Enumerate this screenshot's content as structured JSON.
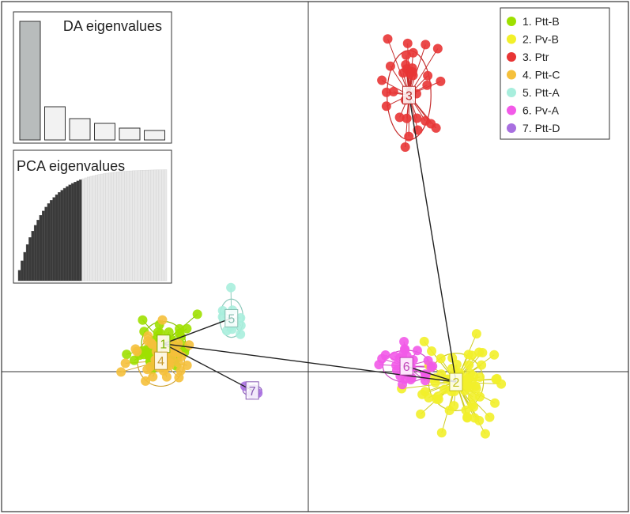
{
  "chart_data": {
    "type": "scatter",
    "title": "",
    "xlabel": "",
    "ylabel": "",
    "xlim": [
      -6,
      6
    ],
    "ylim": [
      -4,
      8
    ],
    "grid": false,
    "legend_position": "top-right",
    "groups": [
      {
        "id": "1",
        "name": "1. Ptt-B",
        "color": "#9ee000",
        "center": [
          -2.9,
          -0.05
        ],
        "spread": [
          0.28,
          0.35
        ],
        "count": 45,
        "seed": 11
      },
      {
        "id": "2",
        "name": "2. Pv-B",
        "color": "#f2f02a",
        "center": [
          2.7,
          -0.95
        ],
        "spread": [
          0.35,
          0.45
        ],
        "count": 70,
        "seed": 22
      },
      {
        "id": "3",
        "name": "3. Ptr",
        "color": "#e83535",
        "center": [
          1.8,
          5.8
        ],
        "spread": [
          0.28,
          0.7
        ],
        "count": 32,
        "seed": 33
      },
      {
        "id": "4",
        "name": "4. Ptt-C",
        "color": "#f5c03b",
        "center": [
          -2.95,
          -0.45
        ],
        "spread": [
          0.3,
          0.4
        ],
        "count": 40,
        "seed": 44
      },
      {
        "id": "5",
        "name": "5. Ptt-A",
        "color": "#a8eedd",
        "center": [
          -1.6,
          0.55
        ],
        "spread": [
          0.15,
          0.3
        ],
        "count": 12,
        "seed": 55
      },
      {
        "id": "6",
        "name": "6. Pv-A",
        "color": "#f25ae8",
        "center": [
          1.75,
          -0.58
        ],
        "spread": [
          0.3,
          0.25
        ],
        "count": 32,
        "seed": 66
      },
      {
        "id": "7",
        "name": "7. Ptt-D",
        "color": "#a86fe0",
        "center": [
          -1.2,
          -1.15
        ],
        "spread": [
          0.12,
          0.08
        ],
        "count": 5,
        "seed": 77
      }
    ],
    "mst_edges": [
      [
        "1",
        "5"
      ],
      [
        "1",
        "7"
      ],
      [
        "1",
        "2"
      ],
      [
        "2",
        "6"
      ],
      [
        "2",
        "3"
      ]
    ]
  },
  "insets": {
    "da": {
      "title": "DA eigenvalues",
      "values": [
        100,
        28,
        18,
        14,
        10,
        8
      ],
      "retained": 1
    },
    "pca": {
      "title": "PCA eigenvalues",
      "count": 56,
      "retained": 24
    }
  }
}
